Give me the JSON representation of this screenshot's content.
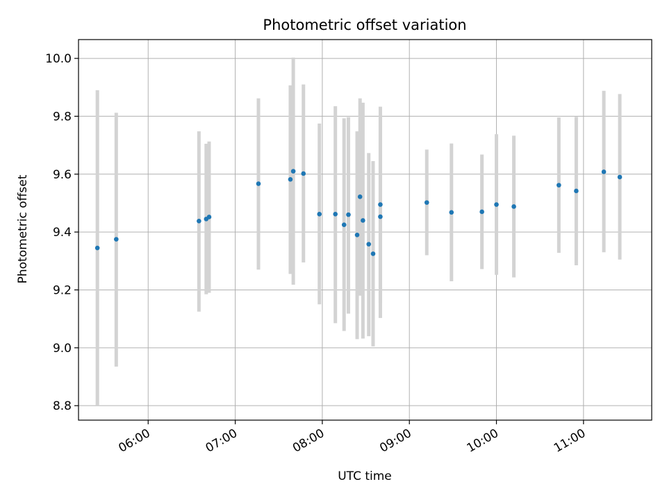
{
  "chart_data": {
    "type": "scatter",
    "title": "Photometric offset variation",
    "xlabel": "UTC time",
    "ylabel": "Photometric offset",
    "x_axis_type": "time",
    "xlim": [
      "05:12",
      "11:47"
    ],
    "ylim": [
      8.75,
      10.065
    ],
    "grid": true,
    "x_ticks": [
      "06:00",
      "07:00",
      "08:00",
      "09:00",
      "10:00",
      "11:00"
    ],
    "y_ticks": [
      8.8,
      9.0,
      9.2,
      9.4,
      9.6,
      9.8,
      10.0
    ],
    "point_color": "#1f77b4",
    "errorbar_color": "#d3d3d3",
    "series": [
      {
        "points": [
          {
            "t": "05:25",
            "y": 9.345,
            "low": 8.8,
            "high": 9.89
          },
          {
            "t": "05:38",
            "y": 9.375,
            "low": 8.935,
            "high": 9.812
          },
          {
            "t": "06:35",
            "y": 9.438,
            "low": 9.125,
            "high": 9.748
          },
          {
            "t": "06:40",
            "y": 9.445,
            "low": 9.185,
            "high": 9.705
          },
          {
            "t": "06:42",
            "y": 9.452,
            "low": 9.19,
            "high": 9.713
          },
          {
            "t": "07:16",
            "y": 9.567,
            "low": 9.27,
            "high": 9.862
          },
          {
            "t": "07:38",
            "y": 9.582,
            "low": 9.255,
            "high": 9.907
          },
          {
            "t": "07:40",
            "y": 9.61,
            "low": 9.218,
            "high": 10.003
          },
          {
            "t": "07:47",
            "y": 9.602,
            "low": 9.295,
            "high": 9.91
          },
          {
            "t": "07:58",
            "y": 9.462,
            "low": 9.15,
            "high": 9.775
          },
          {
            "t": "08:09",
            "y": 9.462,
            "low": 9.085,
            "high": 9.835
          },
          {
            "t": "08:15",
            "y": 9.425,
            "low": 9.058,
            "high": 9.793
          },
          {
            "t": "08:18",
            "y": 9.46,
            "low": 9.118,
            "high": 9.797
          },
          {
            "t": "08:24",
            "y": 9.39,
            "low": 9.03,
            "high": 9.748
          },
          {
            "t": "08:26",
            "y": 9.522,
            "low": 9.18,
            "high": 9.862
          },
          {
            "t": "08:28",
            "y": 9.44,
            "low": 9.032,
            "high": 9.847
          },
          {
            "t": "08:32",
            "y": 9.358,
            "low": 9.04,
            "high": 9.673
          },
          {
            "t": "08:35",
            "y": 9.325,
            "low": 9.005,
            "high": 9.645
          },
          {
            "t": "08:40",
            "y": 9.495,
            "low": 9.155,
            "high": 9.833
          },
          {
            "t": "08:40",
            "y": 9.453,
            "low": 9.103,
            "high": 9.802
          },
          {
            "t": "09:12",
            "y": 9.502,
            "low": 9.32,
            "high": 9.685
          },
          {
            "t": "09:29",
            "y": 9.468,
            "low": 9.23,
            "high": 9.706
          },
          {
            "t": "09:50",
            "y": 9.47,
            "low": 9.272,
            "high": 9.668
          },
          {
            "t": "10:00",
            "y": 9.495,
            "low": 9.252,
            "high": 9.738
          },
          {
            "t": "10:12",
            "y": 9.488,
            "low": 9.243,
            "high": 9.733
          },
          {
            "t": "10:43",
            "y": 9.562,
            "low": 9.328,
            "high": 9.796
          },
          {
            "t": "10:55",
            "y": 9.542,
            "low": 9.285,
            "high": 9.798
          },
          {
            "t": "11:14",
            "y": 9.608,
            "low": 9.33,
            "high": 9.888
          },
          {
            "t": "11:25",
            "y": 9.59,
            "low": 9.305,
            "high": 9.877
          }
        ]
      }
    ]
  }
}
